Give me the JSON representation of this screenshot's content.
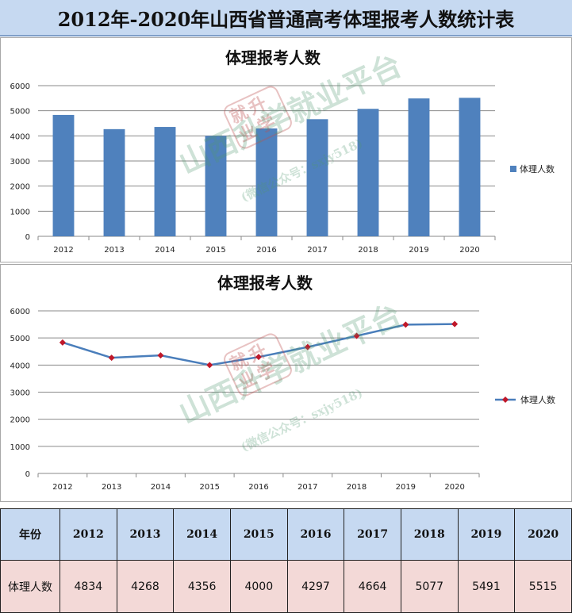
{
  "page_title": "2012年-2020年山西省普通高考体理报考人数统计表",
  "watermark": {
    "seal": "就升业学",
    "main": "山西升学就业平台",
    "sub": "(微信公众号：sxjy518)"
  },
  "chart_data": [
    {
      "type": "bar",
      "title": "体理报考人数",
      "categories": [
        "2012",
        "2013",
        "2014",
        "2015",
        "2016",
        "2017",
        "2018",
        "2019",
        "2020"
      ],
      "series": [
        {
          "name": "体理人数",
          "values": [
            4834,
            4268,
            4356,
            4000,
            4297,
            4664,
            5077,
            5491,
            5515
          ]
        }
      ],
      "ylim": [
        0,
        6000
      ],
      "yticks": [
        0,
        1000,
        2000,
        3000,
        4000,
        5000,
        6000
      ],
      "grid": true,
      "legend": "right",
      "color": "#4f81bd"
    },
    {
      "type": "line",
      "title": "体理报考人数",
      "categories": [
        "2012",
        "2013",
        "2014",
        "2015",
        "2016",
        "2017",
        "2018",
        "2019",
        "2020"
      ],
      "series": [
        {
          "name": "体理人数",
          "values": [
            4834,
            4268,
            4356,
            4000,
            4297,
            4664,
            5077,
            5491,
            5515
          ]
        }
      ],
      "ylim": [
        0,
        6000
      ],
      "yticks": [
        0,
        1000,
        2000,
        3000,
        4000,
        5000,
        6000
      ],
      "grid": true,
      "legend": "right",
      "line_color": "#4a7ebb",
      "marker_color": "#c0182a"
    }
  ],
  "table": {
    "header_label": "年份",
    "row_label": "体理人数",
    "years": [
      "2012",
      "2013",
      "2014",
      "2015",
      "2016",
      "2017",
      "2018",
      "2019",
      "2020"
    ],
    "values": [
      "4834",
      "4268",
      "4356",
      "4000",
      "4297",
      "4664",
      "5077",
      "5491",
      "5515"
    ]
  }
}
